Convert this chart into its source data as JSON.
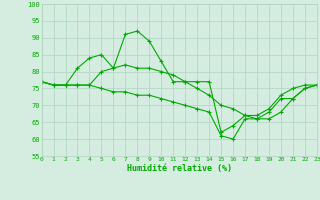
{
  "xlabel": "Humidité relative (%)",
  "bg_color": "#d4ede0",
  "grid_color": "#b0d4be",
  "line_color": "#00aa00",
  "ylim": [
    55,
    100
  ],
  "xlim": [
    0,
    23
  ],
  "yticks": [
    55,
    60,
    65,
    70,
    75,
    80,
    85,
    90,
    95,
    100
  ],
  "xticks": [
    0,
    1,
    2,
    3,
    4,
    5,
    6,
    7,
    8,
    9,
    10,
    11,
    12,
    13,
    14,
    15,
    16,
    17,
    18,
    19,
    20,
    21,
    22,
    23
  ],
  "line1_x": [
    0,
    1,
    2,
    3,
    4,
    5,
    6,
    7,
    8,
    9,
    10,
    11,
    12,
    13,
    14,
    15,
    16,
    17,
    18,
    19,
    20,
    21,
    22,
    23
  ],
  "line1_y": [
    77,
    76,
    76,
    81,
    84,
    85,
    81,
    91,
    92,
    89,
    83,
    77,
    77,
    77,
    77,
    62,
    64,
    67,
    67,
    69,
    73,
    75,
    76,
    76
  ],
  "line2_x": [
    0,
    1,
    2,
    3,
    4,
    5,
    6,
    7,
    8,
    9,
    10,
    11,
    12,
    13,
    14,
    15,
    16,
    17,
    18,
    19,
    20,
    21,
    22,
    23
  ],
  "line2_y": [
    77,
    76,
    76,
    76,
    76,
    80,
    81,
    82,
    81,
    81,
    80,
    79,
    77,
    75,
    73,
    70,
    69,
    67,
    66,
    66,
    68,
    72,
    75,
    76
  ],
  "line3_x": [
    0,
    1,
    2,
    3,
    4,
    5,
    6,
    7,
    8,
    9,
    10,
    11,
    12,
    13,
    14,
    15,
    16,
    17,
    18,
    19,
    20,
    21,
    22,
    23
  ],
  "line3_y": [
    77,
    76,
    76,
    76,
    76,
    75,
    74,
    74,
    73,
    73,
    72,
    71,
    70,
    69,
    68,
    61,
    60,
    66,
    66,
    68,
    72,
    72,
    75,
    76
  ]
}
